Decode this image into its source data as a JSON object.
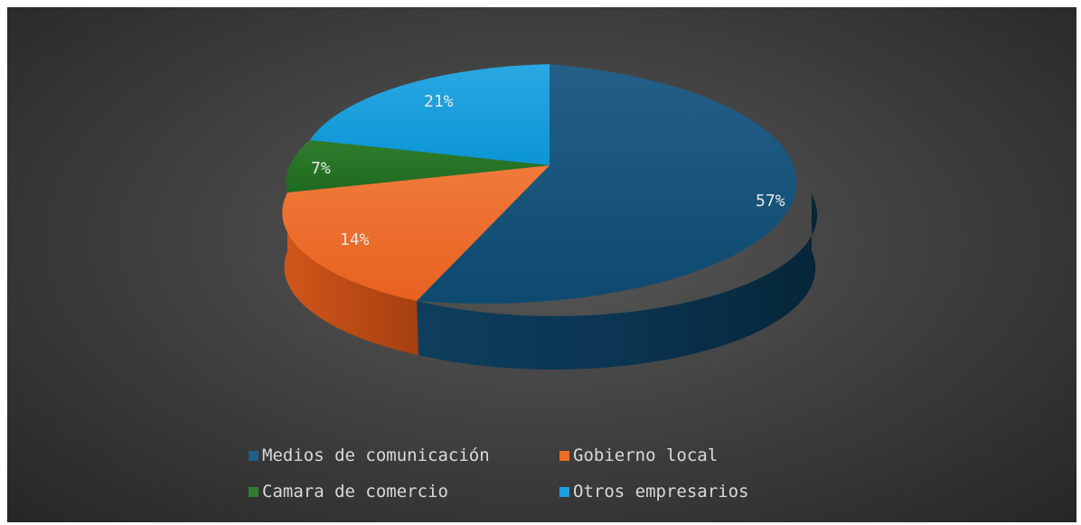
{
  "chart_data": {
    "type": "pie",
    "style": "3d",
    "categories": [
      "Medios de comunicación",
      "Gobierno local",
      "Camara de comercio",
      "Otros empresarios"
    ],
    "values": [
      57,
      14,
      7,
      21
    ],
    "labels": [
      "57%",
      "14%",
      "7%",
      "21%"
    ],
    "colors": [
      "#1f5f8b",
      "#ed6d26",
      "#2e7d32",
      "#1ba1e2"
    ],
    "legend": "bottom",
    "title": ""
  }
}
